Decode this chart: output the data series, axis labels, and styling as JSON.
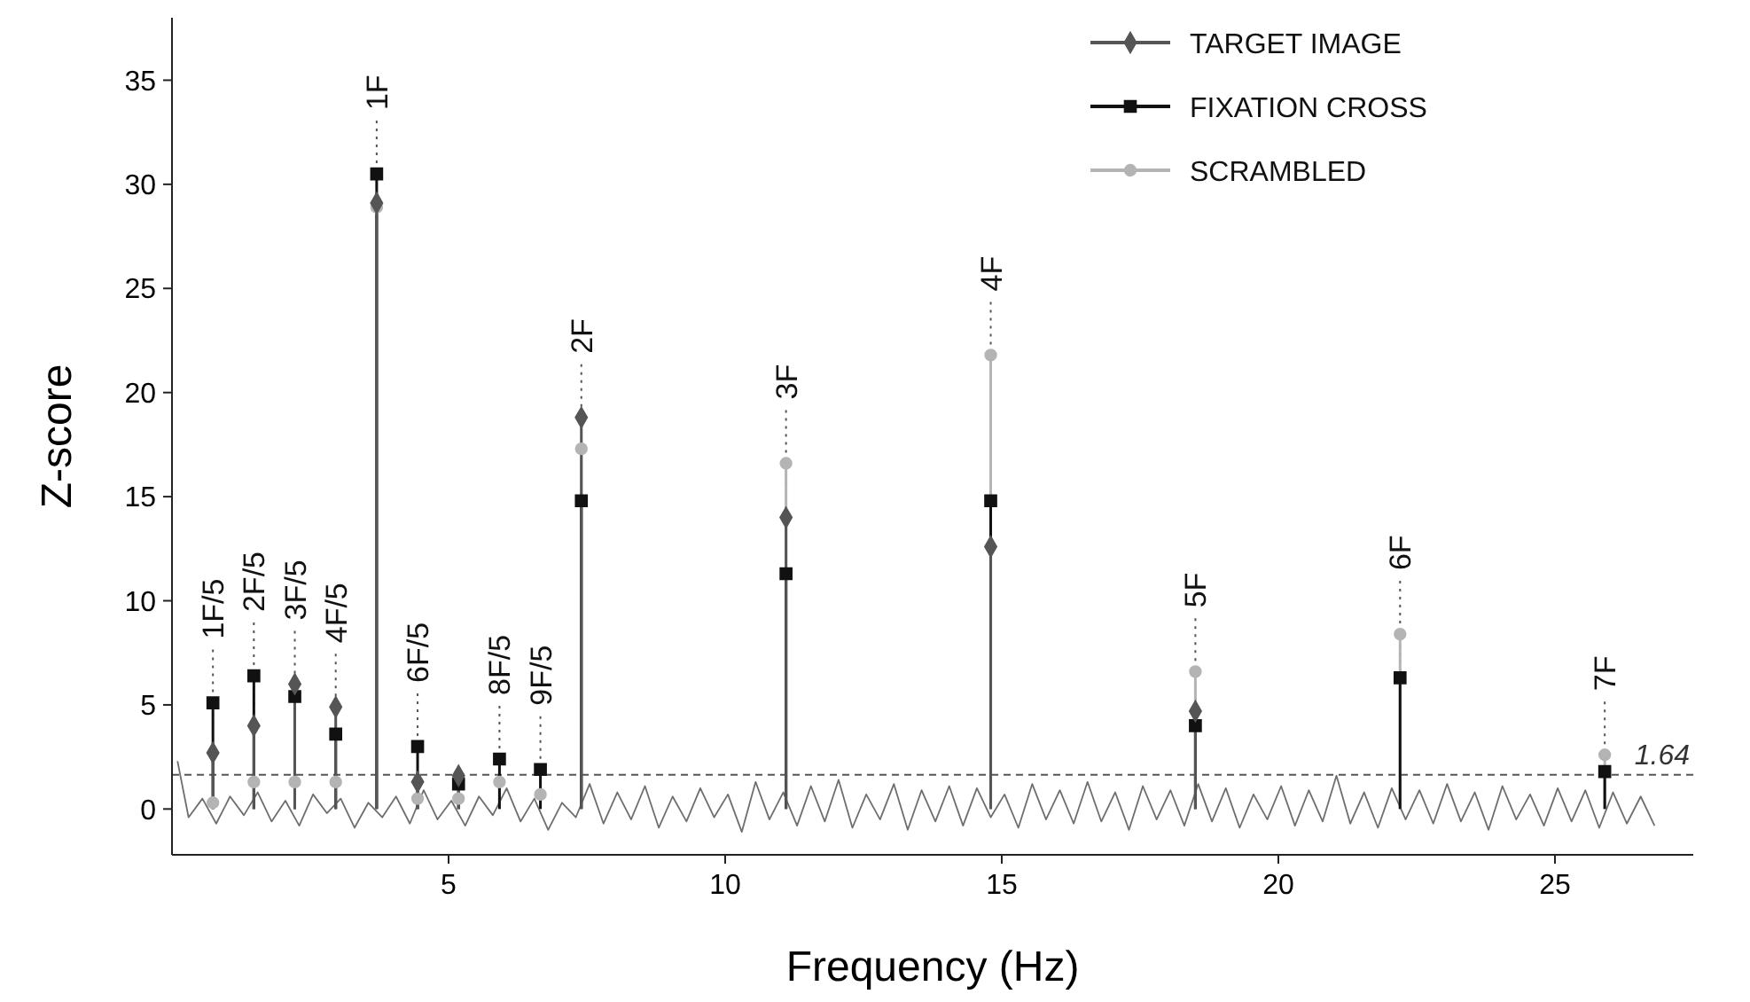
{
  "chart_data": {
    "type": "lollipop",
    "xlabel": "Frequency (Hz)",
    "ylabel": "Z-score",
    "xlim": [
      0,
      27.5
    ],
    "ylim": [
      -2.2,
      38
    ],
    "xticks": [
      5,
      10,
      15,
      20,
      25
    ],
    "yticks": [
      0,
      5,
      10,
      15,
      20,
      25,
      30,
      35
    ],
    "grid": false,
    "legend": "top right",
    "x": [
      0.74,
      1.48,
      2.22,
      2.96,
      3.7,
      4.44,
      5.18,
      5.92,
      6.66,
      7.4,
      11.1,
      14.8,
      18.5,
      22.2,
      25.9
    ],
    "series": [
      {
        "type": "line",
        "color": "#6e6e6e",
        "marker": "none",
        "x": [
          0.1,
          0.3,
          0.55,
          0.8,
          1.05,
          1.3,
          1.55,
          1.8,
          2.05,
          2.3,
          2.55,
          2.8,
          3.05,
          3.3,
          3.55,
          3.8,
          4.05,
          4.3,
          4.55,
          4.8,
          5.05,
          5.3,
          5.55,
          5.8,
          6.05,
          6.3,
          6.55,
          6.8,
          7.05,
          7.3,
          7.55,
          7.8,
          8.05,
          8.3,
          8.55,
          8.8,
          9.05,
          9.3,
          9.55,
          9.8,
          10.05,
          10.3,
          10.55,
          10.8,
          11.05,
          11.3,
          11.55,
          11.8,
          12.05,
          12.3,
          12.55,
          12.8,
          13.05,
          13.3,
          13.55,
          13.8,
          14.05,
          14.3,
          14.55,
          14.8,
          15.05,
          15.3,
          15.55,
          15.8,
          16.05,
          16.3,
          16.55,
          16.8,
          17.05,
          17.3,
          17.55,
          17.8,
          18.05,
          18.3,
          18.55,
          18.8,
          19.05,
          19.3,
          19.55,
          19.8,
          20.05,
          20.3,
          20.55,
          20.8,
          21.05,
          21.3,
          21.55,
          21.8,
          22.05,
          22.3,
          22.55,
          22.8,
          23.05,
          23.3,
          23.55,
          23.8,
          24.05,
          24.3,
          24.55,
          24.8,
          25.05,
          25.3,
          25.55,
          25.8,
          26.05,
          26.3,
          26.55,
          26.8
        ],
        "values": [
          2.3,
          -0.4,
          0.5,
          -0.7,
          0.6,
          -0.3,
          0.8,
          -0.6,
          0.4,
          -0.8,
          0.7,
          -0.2,
          0.5,
          -0.9,
          0.3,
          -0.4,
          0.6,
          -0.7,
          0.9,
          -0.5,
          0.4,
          -0.8,
          0.6,
          -0.3,
          1.0,
          -0.6,
          0.5,
          -1.0,
          0.3,
          -0.4,
          1.2,
          -0.7,
          0.8,
          -0.5,
          1.1,
          -0.9,
          0.6,
          -0.6,
          1.0,
          -0.4,
          0.7,
          -1.1,
          1.3,
          -0.5,
          0.8,
          -0.8,
          1.1,
          -0.6,
          1.4,
          -0.9,
          0.7,
          -0.5,
          1.2,
          -1.0,
          0.9,
          -0.6,
          1.1,
          -0.8,
          1.0,
          -0.4,
          0.7,
          -0.9,
          1.2,
          -0.5,
          0.9,
          -0.7,
          1.3,
          -0.6,
          0.8,
          -1.0,
          1.1,
          -0.5,
          0.9,
          -0.8,
          1.2,
          -0.6,
          1.0,
          -0.9,
          0.7,
          -0.5,
          1.1,
          -0.8,
          0.9,
          -0.6,
          1.6,
          -0.7,
          0.8,
          -0.9,
          1.0,
          -0.5,
          0.9,
          -0.7,
          1.2,
          -0.6,
          0.8,
          -1.0,
          1.1,
          -0.5,
          0.7,
          -0.8,
          1.0,
          -0.6,
          0.9,
          -0.9,
          0.8,
          -0.7,
          0.6,
          -0.8
        ]
      },
      {
        "name": "TARGET IMAGE",
        "color": "#555555",
        "marker": "diamond",
        "values": [
          2.7,
          4.0,
          6.0,
          4.9,
          29.1,
          1.3,
          1.6,
          null,
          null,
          18.8,
          14.0,
          12.6,
          4.7,
          null,
          null
        ]
      },
      {
        "name": "FIXATION CROSS",
        "color": "#111111",
        "marker": "square",
        "values": [
          5.1,
          6.4,
          5.4,
          3.6,
          30.5,
          3.0,
          1.2,
          2.4,
          1.9,
          14.8,
          11.3,
          14.8,
          4.0,
          6.3,
          1.8
        ]
      },
      {
        "name": "SCRAMBLED",
        "color": "#b4b4b4",
        "marker": "circle",
        "values": [
          0.3,
          1.3,
          1.3,
          1.3,
          28.9,
          0.5,
          0.5,
          1.3,
          0.7,
          17.3,
          16.6,
          21.8,
          6.6,
          8.4,
          2.6
        ]
      }
    ],
    "ref_lines": [
      {
        "axis": "y",
        "value": 1.64,
        "label": "1.64",
        "line_style": "dashed",
        "color": "#555555"
      },
      {
        "axis": "x",
        "value": 0.74,
        "label": "1F/5",
        "line_style": "dotted",
        "color": "#555555"
      },
      {
        "axis": "x",
        "value": 1.48,
        "label": "2F/5",
        "line_style": "dotted",
        "color": "#555555"
      },
      {
        "axis": "x",
        "value": 2.22,
        "label": "3F/5",
        "line_style": "dotted",
        "color": "#555555"
      },
      {
        "axis": "x",
        "value": 2.96,
        "label": "4F/5",
        "line_style": "dotted",
        "color": "#555555"
      },
      {
        "axis": "x",
        "value": 3.7,
        "label": "1F",
        "line_style": "dotted",
        "color": "#555555"
      },
      {
        "axis": "x",
        "value": 4.44,
        "label": "6F/5",
        "line_style": "dotted",
        "color": "#555555"
      },
      {
        "axis": "x",
        "value": 5.92,
        "label": "8F/5",
        "line_style": "dotted",
        "color": "#555555"
      },
      {
        "axis": "x",
        "value": 6.66,
        "label": "9F/5",
        "line_style": "dotted",
        "color": "#555555"
      },
      {
        "axis": "x",
        "value": 7.4,
        "label": "2F",
        "line_style": "dotted",
        "color": "#555555"
      },
      {
        "axis": "x",
        "value": 11.1,
        "label": "3F",
        "line_style": "dotted",
        "color": "#555555"
      },
      {
        "axis": "x",
        "value": 14.8,
        "label": "4F",
        "line_style": "dotted",
        "color": "#555555"
      },
      {
        "axis": "x",
        "value": 18.5,
        "label": "5F",
        "line_style": "dotted",
        "color": "#555555"
      },
      {
        "axis": "x",
        "value": 22.2,
        "label": "6F",
        "line_style": "dotted",
        "color": "#555555"
      },
      {
        "axis": "x",
        "value": 25.9,
        "label": "7F",
        "line_style": "dotted",
        "color": "#555555"
      }
    ]
  }
}
